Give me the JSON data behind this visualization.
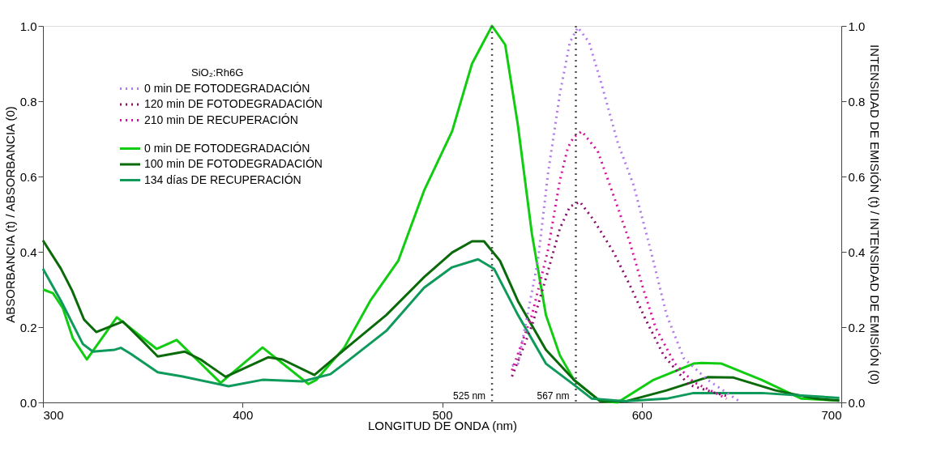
{
  "chart_data": {
    "type": "line",
    "xlabel": "LONGITUD DE ONDA (nm)",
    "ylabel": "ABSORBANCIA (t) / ABSORBANCIA (0)",
    "y2label": "INTENSIDAD DE EMISIÓN (t) / INTENSIDAD DE EMISIÓN (0)",
    "legend_title": "SiO₂:Rh6G",
    "legend": "top left",
    "grid": false,
    "marker": "none",
    "xlim": [
      300,
      700
    ],
    "xticks": [
      300,
      400,
      500,
      600,
      700
    ],
    "ylim": [
      0,
      1
    ],
    "yticks": [
      {
        "value": 0,
        "label": "0.0"
      },
      {
        "value": 0.2,
        "label": "0.2"
      },
      {
        "value": 0.4,
        "label": "0.4"
      },
      {
        "value": 0.6,
        "label": "0.6"
      },
      {
        "value": 0.8,
        "label": "0.8"
      },
      {
        "value": 1,
        "label": "1.0"
      }
    ],
    "y2lim": [
      0,
      1
    ],
    "y2ticks": [
      {
        "value": 0,
        "label": "0.0"
      },
      {
        "value": 0.2,
        "label": "0.2"
      },
      {
        "value": 0.4,
        "label": "0.4"
      },
      {
        "value": 0.6,
        "label": "0.6"
      },
      {
        "value": 0.8,
        "label": "0.8"
      },
      {
        "value": 1,
        "label": "1.0"
      }
    ],
    "ref_lines": [
      {
        "axis": "x",
        "value": 525,
        "label": "525 nm",
        "color": "#555555",
        "line_style": "dotted"
      },
      {
        "axis": "x",
        "value": 567,
        "label": "567 nm",
        "color": "#555555",
        "line_style": "dotted"
      }
    ],
    "series": [
      {
        "name": "0 min DE FOTODEGRADACIÓN",
        "color": "#b07ae8",
        "axis": "y2",
        "line_style": "dotted",
        "x": [
          535,
          538,
          548,
          553,
          559,
          564,
          568,
          573.6,
          580,
          588,
          596,
          604.5,
          612.5,
          621,
          633,
          648.6
        ],
        "values": [
          0.097,
          0.103,
          0.376,
          0.606,
          0.82,
          0.957,
          0.996,
          0.957,
          0.843,
          0.69,
          0.576,
          0.404,
          0.232,
          0.118,
          0.06,
          0.004
        ]
      },
      {
        "name": "120 min DE FOTODEGRADACIÓN",
        "color": "#8b0a6b",
        "axis": "y2",
        "line_style": "dotted",
        "x": [
          535,
          545,
          553,
          559,
          564,
          569,
          576,
          586,
          594,
          602,
          611,
          623.5,
          637,
          642.5
        ],
        "values": [
          0.069,
          0.204,
          0.348,
          0.462,
          0.52,
          0.533,
          0.484,
          0.398,
          0.312,
          0.22,
          0.125,
          0.047,
          0.025,
          0.017
        ]
      },
      {
        "name": "210 min DE RECUPERACIÓN",
        "color": "#d4119a",
        "axis": "y2",
        "line_style": "dotted",
        "x": [
          535,
          545,
          553,
          559,
          563,
          566,
          570,
          578,
          586,
          594,
          600.6,
          607,
          616.6,
          626,
          637,
          642.5
        ],
        "values": [
          0.085,
          0.232,
          0.404,
          0.59,
          0.677,
          0.705,
          0.72,
          0.667,
          0.548,
          0.426,
          0.305,
          0.198,
          0.103,
          0.054,
          0.025,
          0.01
        ]
      },
      {
        "name": "0 min DE FOTODEGRADACIÓN",
        "color": "#11cc11",
        "line_style": "solid",
        "x": [
          300,
          305,
          310,
          315,
          322,
          337,
          357,
          367,
          389,
          410,
          433,
          437,
          451,
          464,
          478,
          491,
          505,
          515,
          525,
          531.6,
          538,
          545,
          552,
          559,
          566,
          579,
          588,
          606,
          626,
          630,
          640,
          660,
          680,
          699
        ],
        "values": [
          0.3,
          0.29,
          0.25,
          0.17,
          0.114,
          0.226,
          0.142,
          0.166,
          0.052,
          0.146,
          0.049,
          0.06,
          0.146,
          0.27,
          0.376,
          0.563,
          0.72,
          0.9,
          1.0,
          0.95,
          0.735,
          0.447,
          0.232,
          0.125,
          0.06,
          0.004,
          0,
          0.06,
          0.103,
          0.105,
          0.103,
          0.06,
          0.01,
          0.005
        ]
      },
      {
        "name": "100  min  DE FOTODEGRADACIÓN",
        "color": "#0a6a0a",
        "line_style": "solid",
        "x": [
          300,
          309,
          314.6,
          320.6,
          326.7,
          340,
          349,
          357.5,
          371,
          379,
          391.5,
          413,
          420,
          436,
          451,
          472,
          491,
          505,
          515,
          521,
          529,
          538,
          552,
          566,
          579,
          592,
          612.5,
          633,
          646,
          667,
          687,
          699
        ],
        "values": [
          0.43,
          0.355,
          0.297,
          0.22,
          0.187,
          0.215,
          0.168,
          0.122,
          0.135,
          0.114,
          0.068,
          0.12,
          0.114,
          0.073,
          0.14,
          0.232,
          0.333,
          0.398,
          0.428,
          0.428,
          0.376,
          0.269,
          0.14,
          0.06,
          0.004,
          0.003,
          0.032,
          0.067,
          0.066,
          0.032,
          0.01,
          0.005
        ]
      },
      {
        "name": "134 días DE RECUPERACIÓN",
        "color": "#0e9a5a",
        "line_style": "solid",
        "x": [
          300,
          309,
          320,
          325,
          336,
          339,
          344,
          357.5,
          370,
          393,
          410,
          430,
          444,
          451,
          472,
          491,
          505,
          518,
          526,
          538,
          552,
          566,
          575,
          592,
          612.5,
          626,
          660,
          699
        ],
        "values": [
          0.355,
          0.27,
          0.155,
          0.135,
          0.14,
          0.145,
          0.129,
          0.08,
          0.069,
          0.043,
          0.06,
          0.056,
          0.075,
          0.103,
          0.19,
          0.305,
          0.359,
          0.38,
          0.355,
          0.232,
          0.103,
          0.047,
          0.01,
          0.003,
          0.01,
          0.025,
          0.025,
          0.012
        ]
      }
    ]
  }
}
